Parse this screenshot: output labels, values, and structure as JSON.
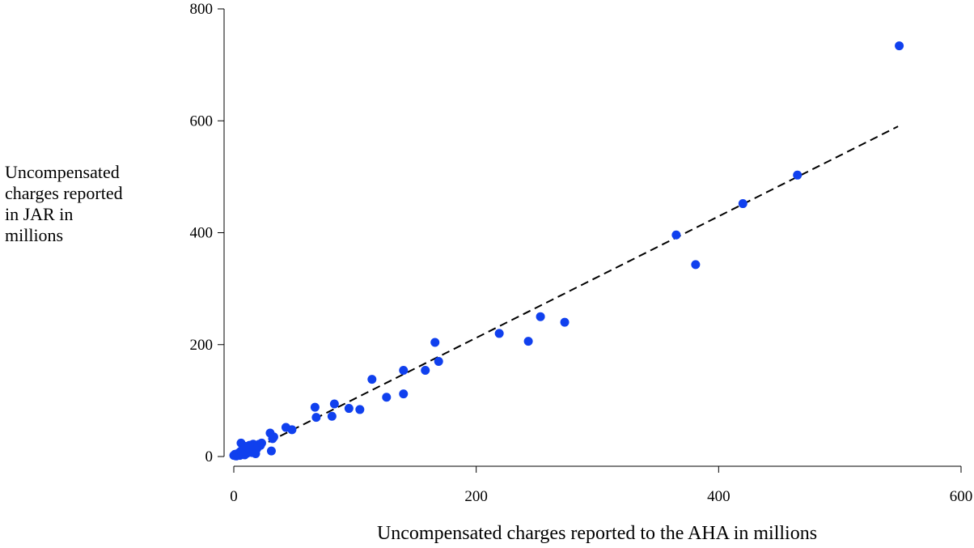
{
  "chart_data": {
    "type": "scatter",
    "xlabel": "Uncompensated charges reported to the AHA in millions",
    "ylabel_lines": [
      "Uncompensated",
      "charges reported",
      "in JAR in",
      "millions"
    ],
    "xlim": [
      0,
      600
    ],
    "ylim": [
      0,
      800
    ],
    "x_ticks": [
      0,
      200,
      400,
      600
    ],
    "y_ticks": [
      0,
      200,
      400,
      600,
      800
    ],
    "grid": false,
    "point_color": "#1040ee",
    "fit_line": {
      "style": "dashed",
      "color": "#000000",
      "x": [
        0,
        548
      ],
      "y": [
        -5,
        590
      ]
    },
    "points": [
      [
        0,
        2
      ],
      [
        1,
        4
      ],
      [
        2,
        1
      ],
      [
        3,
        5
      ],
      [
        4,
        3
      ],
      [
        5,
        8
      ],
      [
        5,
        2
      ],
      [
        6,
        24
      ],
      [
        6,
        10
      ],
      [
        7,
        5
      ],
      [
        8,
        12
      ],
      [
        9,
        3
      ],
      [
        10,
        18
      ],
      [
        10,
        8
      ],
      [
        11,
        6
      ],
      [
        12,
        16
      ],
      [
        13,
        20
      ],
      [
        14,
        10
      ],
      [
        15,
        7
      ],
      [
        16,
        22
      ],
      [
        17,
        12
      ],
      [
        18,
        5
      ],
      [
        19,
        14
      ],
      [
        20,
        18
      ],
      [
        21,
        22
      ],
      [
        22,
        20
      ],
      [
        23,
        24
      ],
      [
        30,
        42
      ],
      [
        31,
        10
      ],
      [
        32,
        32
      ],
      [
        33,
        35
      ],
      [
        43,
        52
      ],
      [
        48,
        48
      ],
      [
        67,
        88
      ],
      [
        68,
        70
      ],
      [
        81,
        72
      ],
      [
        83,
        94
      ],
      [
        95,
        86
      ],
      [
        104,
        84
      ],
      [
        114,
        138
      ],
      [
        126,
        106
      ],
      [
        140,
        154
      ],
      [
        140,
        112
      ],
      [
        158,
        154
      ],
      [
        166,
        204
      ],
      [
        169,
        170
      ],
      [
        219,
        220
      ],
      [
        243,
        206
      ],
      [
        253,
        250
      ],
      [
        273,
        240
      ],
      [
        365,
        396
      ],
      [
        381,
        343
      ],
      [
        420,
        452
      ],
      [
        465,
        503
      ],
      [
        549,
        734
      ]
    ]
  }
}
